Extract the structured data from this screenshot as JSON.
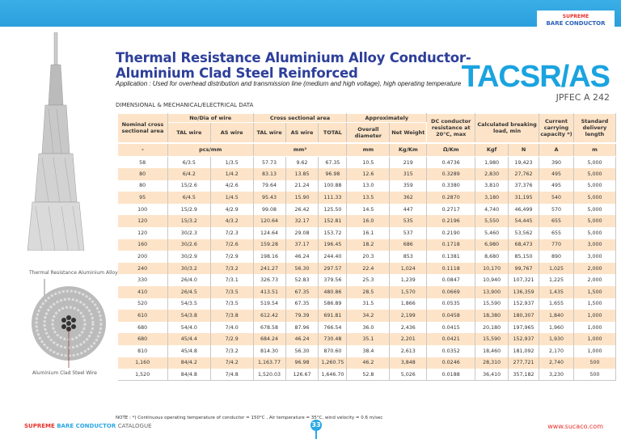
{
  "brand": {
    "line1": "SUPREME",
    "line2": "BARE CONDUCTOR"
  },
  "title_line1": "Thermal Resistance Aluminium Alloy Conductor-",
  "title_line2": "Aluminium Clad Steel Reinforced",
  "application": "Application : Used for overhead distribution and transmission line (medium and high voltage), high operating temperature",
  "product_code": "TACSR/AS",
  "standard": "JPFEC A 242",
  "section_title": "DIMENSIONAL & MECHANICAL/ELECTRICAL  DATA",
  "labels": {
    "tal_wire": "Thermal Resistance Aluminium Alloy Wire",
    "as_wire": "Aluminium Clad Steel Wire"
  },
  "headers": {
    "nominal": "Nominal cross sectional area",
    "nodia": "No/Dia of wire",
    "csa": "Cross sectional area",
    "approx": "Approximately",
    "dc": "DC conductor resistance at 20°C, max",
    "breaking": "Calculated breaking load, min",
    "current": "Current carrying capacity *)",
    "delivery": "Standard delivery length",
    "tal": "TAL wire",
    "as": "AS wire",
    "tal2": "TAL wire",
    "as2": "AS wire",
    "total": "TOTAL",
    "diameter": "Overall diameter",
    "weight": "Net Weight"
  },
  "units": {
    "nominal": "-",
    "nodia": "pcs/mm",
    "csa": "mm²",
    "diameter": "mm",
    "weight": "Kg/Km",
    "dc": "Ω/Km",
    "kgf": "Kgf",
    "n": "N",
    "current": "A",
    "delivery": "m"
  },
  "rows": [
    [
      "58",
      "6/3.5",
      "1/3.5",
      "57.73",
      "9.62",
      "67.35",
      "10.5",
      "219",
      "0.4736",
      "1,980",
      "19,423",
      "390",
      "5,000"
    ],
    [
      "80",
      "6/4.2",
      "1/4.2",
      "83.13",
      "13.85",
      "96.98",
      "12.6",
      "315",
      "0.3289",
      "2,830",
      "27,762",
      "495",
      "5,000"
    ],
    [
      "80",
      "15/2.6",
      "4/2.6",
      "79.64",
      "21.24",
      "100.88",
      "13.0",
      "359",
      "0.3380",
      "3,810",
      "37,376",
      "495",
      "5,000"
    ],
    [
      "95",
      "6/4.5",
      "1/4.5",
      "95.43",
      "15.90",
      "111.33",
      "13.5",
      "362",
      "0.2870",
      "3,180",
      "31,195",
      "540",
      "5,000"
    ],
    [
      "100",
      "15/2.9",
      "4/2.9",
      "99.08",
      "26.42",
      "125.50",
      "14.5",
      "447",
      "0.2717",
      "4,740",
      "46,499",
      "570",
      "5,000"
    ],
    [
      "120",
      "15/3.2",
      "4/3.2",
      "120.64",
      "32.17",
      "152.81",
      "16.0",
      "535",
      "0.2196",
      "5,550",
      "54,445",
      "655",
      "5,000"
    ],
    [
      "120",
      "30/2.3",
      "7/2.3",
      "124.64",
      "29.08",
      "153.72",
      "16.1",
      "537",
      "0.2190",
      "5,460",
      "53,562",
      "655",
      "5,000"
    ],
    [
      "160",
      "30/2.6",
      "7/2.6",
      "159.28",
      "37.17",
      "196.45",
      "18.2",
      "686",
      "0.1718",
      "6,980",
      "68,473",
      "770",
      "3,000"
    ],
    [
      "200",
      "30/2.9",
      "7/2.9",
      "198.16",
      "46.24",
      "244.40",
      "20.3",
      "853",
      "0.1381",
      "8,680",
      "85,150",
      "890",
      "3,000"
    ],
    [
      "240",
      "30/3.2",
      "7/3.2",
      "241.27",
      "56.30",
      "297.57",
      "22.4",
      "1,024",
      "0.1118",
      "10,170",
      "99,767",
      "1,025",
      "2,000"
    ],
    [
      "330",
      "26/4.0",
      "7/3.1",
      "326.73",
      "52.83",
      "379.56",
      "25.3",
      "1,239",
      "0.0847",
      "10,940",
      "107,321",
      "1,225",
      "2,000"
    ],
    [
      "410",
      "26/4.5",
      "7/3.5",
      "413.51",
      "67.35",
      "480.86",
      "28.5",
      "1,570",
      "0.0669",
      "13,900",
      "136,359",
      "1,435",
      "1,500"
    ],
    [
      "520",
      "54/3.5",
      "7/3.5",
      "519.54",
      "67.35",
      "586.89",
      "31.5",
      "1,866",
      "0.0535",
      "15,590",
      "152,937",
      "1,655",
      "1,500"
    ],
    [
      "610",
      "54/3.8",
      "7/3.8",
      "612.42",
      "79.39",
      "691.81",
      "34.2",
      "2,199",
      "0.0458",
      "18,380",
      "180,307",
      "1,840",
      "1,000"
    ],
    [
      "680",
      "54/4.0",
      "7/4.0",
      "678.58",
      "87.96",
      "766.54",
      "36.0",
      "2,436",
      "0.0415",
      "20,180",
      "197,965",
      "1,960",
      "1,000"
    ],
    [
      "680",
      "45/4.4",
      "7/2.9",
      "684.24",
      "46.24",
      "730.48",
      "35.1",
      "2,201",
      "0.0421",
      "15,590",
      "152,937",
      "1,930",
      "1,000"
    ],
    [
      "810",
      "45/4.8",
      "7/3.2",
      "814.30",
      "56.30",
      "870.60",
      "38.4",
      "2,613",
      "0.0352",
      "18,460",
      "181,092",
      "2,170",
      "1,000"
    ],
    [
      "1,160",
      "84/4.2",
      "7/4.2",
      "1,163.77",
      "96.98",
      "1,260.75",
      "46.2",
      "3,848",
      "0.0246",
      "28,310",
      "277,721",
      "2,740",
      "500"
    ],
    [
      "1,520",
      "84/4.8",
      "7/4.8",
      "1,520.03",
      "126.67",
      "1,646.70",
      "52.8",
      "5,026",
      "0.0188",
      "36,410",
      "357,182",
      "3,230",
      "500"
    ]
  ],
  "note": "NOTE :   *)  Continuous operating temperature of conductor = 150°C , Air temperature = 35°C,  wind velocity = 0.6 m/sec",
  "footer": {
    "brand1": "SUPREME",
    "brand2": "BARE CONDUCTOR",
    "catalogue": "CATALOGUE",
    "page": "33",
    "website": "www.sucaco.com"
  },
  "colors": {
    "banner": "#2ba7e2",
    "title": "#2d3f9a",
    "code": "#1aa3e0",
    "row_alt": "#fde4c8",
    "brand_red": "#e8312a"
  }
}
